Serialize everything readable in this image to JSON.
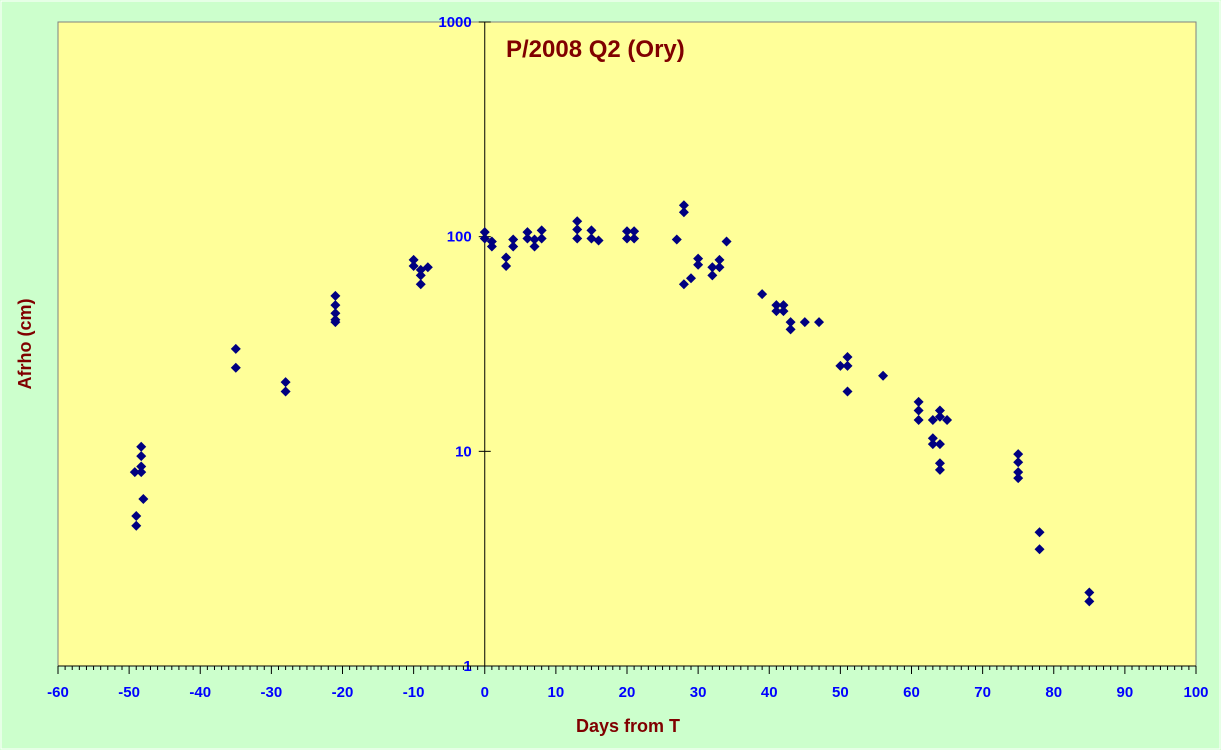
{
  "chart_data": {
    "type": "scatter",
    "title": "P/2008 Q2 (Ory)",
    "xlabel": "Days from T",
    "ylabel": "Afrho (cm)",
    "xlim": [
      -60,
      100
    ],
    "ylim": [
      1,
      1000
    ],
    "y_scale": "log",
    "x_ticks": [
      -60,
      -50,
      -40,
      -30,
      -20,
      -10,
      0,
      10,
      20,
      30,
      40,
      50,
      60,
      70,
      80,
      90,
      100
    ],
    "y_ticks": [
      1,
      10,
      100,
      1000
    ],
    "legend": "none",
    "grid": false,
    "colors": {
      "plot_background": "#ffff99",
      "page_background": "#ccffcc",
      "marker": "#000080",
      "tick_labels": "#0000ff",
      "titles": "#800000"
    },
    "marker": "diamond",
    "points": [
      {
        "x": -49.2,
        "y": 8.0
      },
      {
        "x": -49.0,
        "y": 5.0
      },
      {
        "x": -49.0,
        "y": 4.5
      },
      {
        "x": -48.3,
        "y": 10.5
      },
      {
        "x": -48.3,
        "y": 9.5
      },
      {
        "x": -48.3,
        "y": 8.5
      },
      {
        "x": -48.3,
        "y": 8.0
      },
      {
        "x": -48.0,
        "y": 6.0
      },
      {
        "x": -35.0,
        "y": 30.0
      },
      {
        "x": -35.0,
        "y": 24.5
      },
      {
        "x": -28.0,
        "y": 21.0
      },
      {
        "x": -28.0,
        "y": 19.0
      },
      {
        "x": -21.0,
        "y": 53.0
      },
      {
        "x": -21.0,
        "y": 48.0
      },
      {
        "x": -21.0,
        "y": 44.0
      },
      {
        "x": -21.0,
        "y": 41.0
      },
      {
        "x": -21.0,
        "y": 40.0
      },
      {
        "x": -10.0,
        "y": 78.0
      },
      {
        "x": -10.0,
        "y": 73.0
      },
      {
        "x": -9.0,
        "y": 70.0
      },
      {
        "x": -9.0,
        "y": 66.0
      },
      {
        "x": -9.0,
        "y": 60.0
      },
      {
        "x": -8.0,
        "y": 72.0
      },
      {
        "x": 0.0,
        "y": 105.0
      },
      {
        "x": 0.0,
        "y": 98.0
      },
      {
        "x": 1.0,
        "y": 95.0
      },
      {
        "x": 1.0,
        "y": 90.0
      },
      {
        "x": 3.0,
        "y": 80.0
      },
      {
        "x": 3.0,
        "y": 73.0
      },
      {
        "x": 4.0,
        "y": 97.0
      },
      {
        "x": 4.0,
        "y": 90.0
      },
      {
        "x": 6.0,
        "y": 105.0
      },
      {
        "x": 6.0,
        "y": 98.0
      },
      {
        "x": 7.0,
        "y": 97.0
      },
      {
        "x": 7.0,
        "y": 90.0
      },
      {
        "x": 8.0,
        "y": 107.0
      },
      {
        "x": 8.0,
        "y": 98.0
      },
      {
        "x": 13.0,
        "y": 118.0
      },
      {
        "x": 13.0,
        "y": 108.0
      },
      {
        "x": 13.0,
        "y": 98.0
      },
      {
        "x": 15.0,
        "y": 107.0
      },
      {
        "x": 15.0,
        "y": 98.0
      },
      {
        "x": 16.0,
        "y": 96.0
      },
      {
        "x": 20.0,
        "y": 106.0
      },
      {
        "x": 20.0,
        "y": 98.0
      },
      {
        "x": 21.0,
        "y": 106.0
      },
      {
        "x": 21.0,
        "y": 98.0
      },
      {
        "x": 27.0,
        "y": 97.0
      },
      {
        "x": 28.0,
        "y": 140.0
      },
      {
        "x": 28.0,
        "y": 130.0
      },
      {
        "x": 28.0,
        "y": 60.0
      },
      {
        "x": 29.0,
        "y": 64.0
      },
      {
        "x": 30.0,
        "y": 79.0
      },
      {
        "x": 30.0,
        "y": 74.0
      },
      {
        "x": 32.0,
        "y": 72.0
      },
      {
        "x": 32.0,
        "y": 66.0
      },
      {
        "x": 33.0,
        "y": 78.0
      },
      {
        "x": 33.0,
        "y": 72.0
      },
      {
        "x": 34.0,
        "y": 95.0
      },
      {
        "x": 39.0,
        "y": 54.0
      },
      {
        "x": 41.0,
        "y": 48.0
      },
      {
        "x": 41.0,
        "y": 45.0
      },
      {
        "x": 42.0,
        "y": 48.0
      },
      {
        "x": 42.0,
        "y": 45.0
      },
      {
        "x": 43.0,
        "y": 40.0
      },
      {
        "x": 43.0,
        "y": 37.0
      },
      {
        "x": 45.0,
        "y": 40.0
      },
      {
        "x": 47.0,
        "y": 40.0
      },
      {
        "x": 50.0,
        "y": 25.0
      },
      {
        "x": 51.0,
        "y": 27.5
      },
      {
        "x": 51.0,
        "y": 25.0
      },
      {
        "x": 51.0,
        "y": 19.0
      },
      {
        "x": 56.0,
        "y": 22.5
      },
      {
        "x": 61.0,
        "y": 17.0
      },
      {
        "x": 61.0,
        "y": 15.5
      },
      {
        "x": 61.0,
        "y": 14.0
      },
      {
        "x": 63.0,
        "y": 14.0
      },
      {
        "x": 63.0,
        "y": 11.5
      },
      {
        "x": 63.0,
        "y": 10.8
      },
      {
        "x": 64.0,
        "y": 15.5
      },
      {
        "x": 64.0,
        "y": 14.5
      },
      {
        "x": 64.0,
        "y": 10.8
      },
      {
        "x": 64.0,
        "y": 8.8
      },
      {
        "x": 64.0,
        "y": 8.2
      },
      {
        "x": 65.0,
        "y": 14.0
      },
      {
        "x": 75.0,
        "y": 9.7
      },
      {
        "x": 75.0,
        "y": 8.9
      },
      {
        "x": 75.0,
        "y": 8.0
      },
      {
        "x": 75.0,
        "y": 7.5
      },
      {
        "x": 78.0,
        "y": 4.2
      },
      {
        "x": 78.0,
        "y": 3.5
      },
      {
        "x": 85.0,
        "y": 2.2
      },
      {
        "x": 85.0,
        "y": 2.0
      }
    ]
  }
}
